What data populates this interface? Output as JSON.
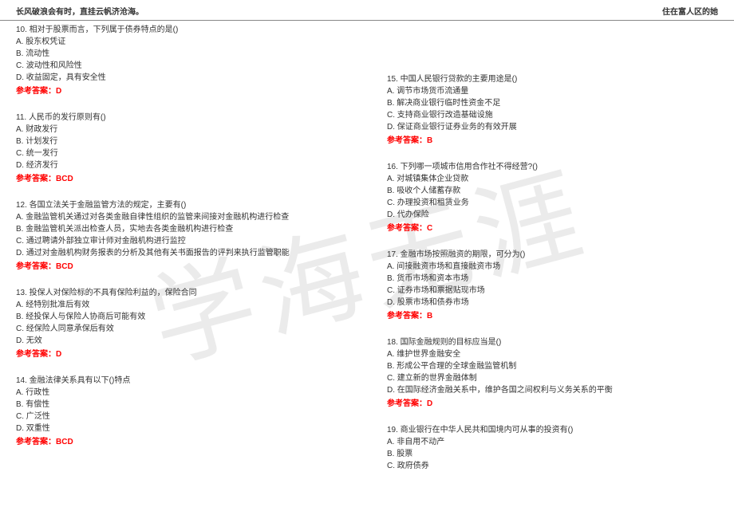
{
  "header": {
    "left": "长风破浪会有时，直挂云帆济沧海。",
    "right": "住在富人区的她"
  },
  "watermark": "学海无涯",
  "answer_prefix": "参考答案：",
  "left_questions": [
    {
      "q": "10. 相对于股票而言，下列属于债券特点的是()",
      "opts": [
        "A. 股东权凭证",
        "B. 流动性",
        "C. 波动性和风险性",
        "D. 收益固定，具有安全性"
      ],
      "ans": "D"
    },
    {
      "q": "11. 人民币的发行原则有()",
      "opts": [
        "A. 财政发行",
        "B. 计划发行",
        "C. 统一发行",
        "D. 经济发行"
      ],
      "ans": "BCD"
    },
    {
      "q": "12. 各国立法关于金融监管方法的规定，主要有()",
      "opts": [
        "A. 金融监管机关通过对各类金融自律性组织的监管来间接对金融机构进行检查",
        "B. 金融监管机关派出检查人员，实地去各类金融机构进行检查",
        "C. 通过聘请外部独立审计师对金融机构进行监控",
        "D. 通过对金融机构财务报表的分析及其他有关书面报告的评判来执行监管职能"
      ],
      "ans": "BCD"
    },
    {
      "q": "13. 投保人对保险标的不具有保险利益的，保险合同",
      "opts": [
        "A. 经特别批准后有效",
        "B. 经投保人与保险人协商后可能有效",
        "C. 经保险人同意承保后有效",
        "D. 无效"
      ],
      "ans": "D"
    },
    {
      "q": "14. 金融法律关系具有以下()特点",
      "opts": [
        "A. 行政性",
        "B. 有偿性",
        "C. 广泛性",
        "D. 双重性"
      ],
      "ans": "BCD"
    }
  ],
  "right_questions": [
    {
      "q": "15. 中国人民银行贷款的主要用途是()",
      "opts": [
        "A. 调节市场货币流通量",
        "B. 解决商业银行临时性资金不足",
        "C. 支持商业银行改造基础设施",
        "D. 保证商业银行证券业务的有效开展"
      ],
      "ans": "B"
    },
    {
      "q": "16. 下列哪一项城市信用合作社不得经营?()",
      "opts": [
        "A. 对城镇集体企业贷款",
        "B. 吸收个人储蓄存款",
        "C. 办理投资和租赁业务",
        "D. 代办保险"
      ],
      "ans": "C"
    },
    {
      "q": "17. 金融市场按照融资的期限，可分为()",
      "opts": [
        "A. 间接融资市场和直接融资市场",
        "B. 货币市场和资本市场",
        "C. 证券市场和票据贴现市场",
        "D. 股票市场和债券市场"
      ],
      "ans": "B"
    },
    {
      "q": "18. 国际金融规则的目标应当是()",
      "opts": [
        "A. 维护世界金融安全",
        "B. 形成公平合理的全球金融监管机制",
        "C. 建立新的世界金融体制",
        "D. 在国际经济金融关系中，维护各国之间权利与义务关系的平衡"
      ],
      "ans": "D"
    },
    {
      "q": "19. 商业银行在中华人民共和国境内可从事的投资有()",
      "opts": [
        "A. 非自用不动产",
        "B. 股票",
        "C. 政府债券"
      ],
      "ans": ""
    }
  ]
}
